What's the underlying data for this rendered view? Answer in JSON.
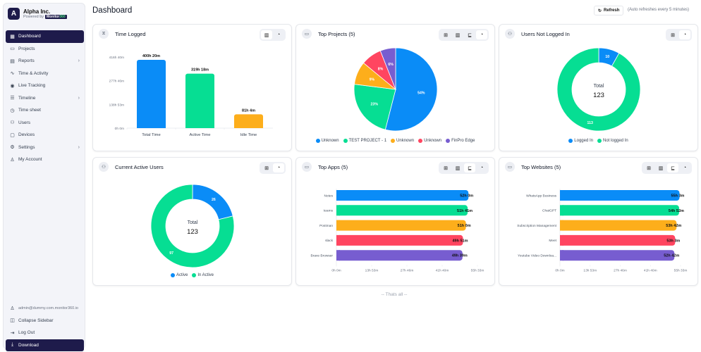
{
  "sidebar": {
    "brand": {
      "initial": "A",
      "name": "Alpha Inc.",
      "powered_by": "Powered by",
      "badge_text": "Monitor",
      "badge_suffix": "360"
    },
    "items": [
      {
        "label": "Dashboard",
        "icon": "grid-icon",
        "glyph": "▦",
        "active": true,
        "chevron": false
      },
      {
        "label": "Projects",
        "icon": "folder-icon",
        "glyph": "▭",
        "chevron": false
      },
      {
        "label": "Reports",
        "icon": "report-icon",
        "glyph": "▤",
        "chevron": true
      },
      {
        "label": "Time & Activity",
        "icon": "activity-icon",
        "glyph": "∿",
        "chevron": false
      },
      {
        "label": "Live Tracking",
        "icon": "live-icon",
        "glyph": "◉",
        "chevron": false
      },
      {
        "label": "Timeline",
        "icon": "timeline-icon",
        "glyph": "☰",
        "chevron": true
      },
      {
        "label": "Time sheet",
        "icon": "stopwatch-icon",
        "glyph": "◷",
        "chevron": false
      },
      {
        "label": "Users",
        "icon": "users-icon",
        "glyph": "⚇",
        "chevron": false
      },
      {
        "label": "Devices",
        "icon": "monitor-icon",
        "glyph": "▢",
        "chevron": false
      },
      {
        "label": "Settings",
        "icon": "gear-icon",
        "glyph": "⚙",
        "chevron": true
      },
      {
        "label": "My Account",
        "icon": "user-icon",
        "glyph": "♙",
        "chevron": false
      }
    ],
    "chevron_glyph": "›",
    "bottom": {
      "email": "admin@dummy.com.monitor360.io",
      "collapse": "Collapse Sidebar",
      "logout": "Log Out",
      "download": "Download"
    }
  },
  "header": {
    "title": "Dashboard",
    "refresh_label": "Refresh",
    "auto_note": "(Auto refreshes every 5 minutes)"
  },
  "footer_note": "-- Thats all --",
  "colors": {
    "blue": "#0a8cf7",
    "green": "#06de93",
    "orange": "#fdae1b",
    "red": "#ff4560",
    "purple": "#775dd0",
    "navy": "#1e1b4b"
  },
  "cards": {
    "time_logged": {
      "title": "Time Logged",
      "icon": "hourglass-icon"
    },
    "top_projects": {
      "title": "Top Projects (5)",
      "icon": "folder-icon"
    },
    "users_not_logged": {
      "title": "Users Not Logged In",
      "icon": "users-icon"
    },
    "active_users": {
      "title": "Current Active Users",
      "icon": "users-icon"
    },
    "top_apps": {
      "title": "Top Apps (5)",
      "icon": "folder-icon"
    },
    "top_websites": {
      "title": "Top Websites (5)",
      "icon": "folder-icon"
    }
  },
  "chart_data": [
    {
      "id": "time_logged",
      "type": "bar",
      "title": "Time Logged",
      "categories": [
        "Total Time",
        "Active Time",
        "Idle Time"
      ],
      "values": [
        400.33,
        319.3,
        81.07
      ],
      "value_labels": [
        "400h 20m",
        "319h 18m",
        "81h 4m"
      ],
      "yticks": [
        "0h 0m",
        "138h 53m",
        "277h 46m",
        "416h 40m"
      ],
      "ylim": [
        0,
        416.67
      ],
      "colors": [
        "#0a8cf7",
        "#06de93",
        "#fdae1b"
      ]
    },
    {
      "id": "top_projects",
      "type": "pie",
      "title": "Top Projects (5)",
      "labels": [
        "Unknown",
        "TEST PROJECT - 1",
        "Unknown",
        "Unknown",
        "FinPro Edge"
      ],
      "values": [
        54,
        23,
        9,
        8,
        6
      ],
      "value_labels": [
        "54%",
        "23%",
        "9%",
        "8%",
        "6%"
      ],
      "colors": [
        "#0a8cf7",
        "#06de93",
        "#fdae1b",
        "#ff4560",
        "#775dd0"
      ],
      "legend": "bottom"
    },
    {
      "id": "users_not_logged",
      "type": "pie",
      "donut": true,
      "title": "Users Not Logged In",
      "labels": [
        "Logged In",
        "Not logged In"
      ],
      "values": [
        10,
        113
      ],
      "value_labels": [
        "10",
        "113"
      ],
      "center_label": "Total",
      "center_value": "123",
      "colors": [
        "#0a8cf7",
        "#06de93"
      ],
      "legend": "bottom"
    },
    {
      "id": "active_users",
      "type": "pie",
      "donut": true,
      "title": "Current Active Users",
      "labels": [
        "Active",
        "In Active"
      ],
      "values": [
        26,
        97
      ],
      "value_labels": [
        "26",
        "97"
      ],
      "center_label": "Total",
      "center_value": "123",
      "colors": [
        "#0a8cf7",
        "#06de93"
      ],
      "legend": "bottom"
    },
    {
      "id": "top_apps",
      "type": "bar",
      "orientation": "horizontal",
      "title": "Top Apps (5)",
      "categories": [
        "Notes",
        "teams",
        "Postman",
        "slack",
        "Brave Browser"
      ],
      "values": [
        52.0,
        51.68,
        51.0,
        49.85,
        49.65
      ],
      "value_labels": [
        "52h 0m",
        "51h 41m",
        "51h 0m",
        "49h 51m",
        "49h 39m"
      ],
      "xticks": [
        "0h 0m",
        "13h 53m",
        "27h 46m",
        "41h 40m",
        "55h 33m"
      ],
      "xlim": [
        0,
        55.55
      ],
      "colors": [
        "#0a8cf7",
        "#06de93",
        "#fdae1b",
        "#ff4560",
        "#775dd0"
      ]
    },
    {
      "id": "top_websites",
      "type": "bar",
      "orientation": "horizontal",
      "title": "Top Websites (5)",
      "categories": [
        "WhatsApp Business",
        "ChatGPT",
        "Subscription Management",
        "Meet",
        "Youtube Video Downloa..."
      ],
      "values": [
        55.05,
        54.87,
        53.7,
        53.05,
        52.7
      ],
      "value_labels": [
        "55h 3m",
        "54h 52m",
        "53h 42m",
        "53h 3m",
        "52h 42m"
      ],
      "xticks": [
        "0h 0m",
        "13h 53m",
        "27h 46m",
        "41h 40m",
        "55h 33m"
      ],
      "xlim": [
        0,
        55.55
      ],
      "colors": [
        "#0a8cf7",
        "#06de93",
        "#fdae1b",
        "#ff4560",
        "#775dd0"
      ]
    }
  ]
}
